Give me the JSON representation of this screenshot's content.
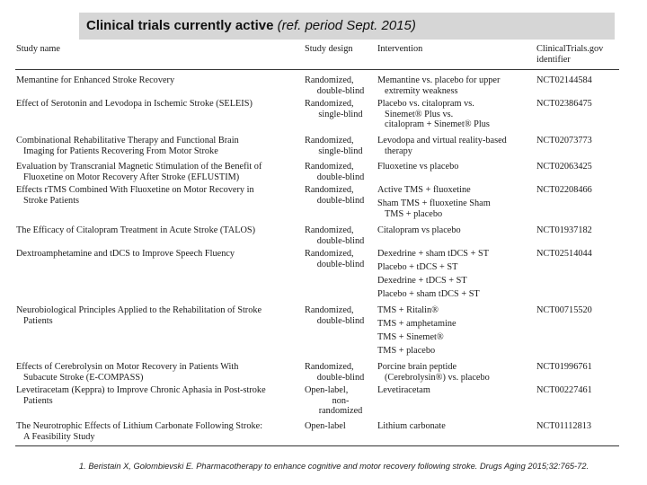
{
  "title": {
    "bold": "Clinical trials currently active",
    "italic": "(ref. period Sept. 2015)"
  },
  "table": {
    "headers": [
      "Study name",
      "Study design",
      "Intervention",
      [
        "ClinicalTrials.gov",
        "identifier"
      ]
    ],
    "rows": [
      {
        "name": [
          "Memantine for Enhanced Stroke Recovery"
        ],
        "design": [
          "Randomized,",
          "double-blind"
        ],
        "intervention": [
          [
            "Memantine vs. placebo for upper",
            "extremity weakness"
          ]
        ],
        "id": "NCT02144584"
      },
      {
        "name": [
          "Effect of Serotonin and Levodopa in Ischemic Stroke (SELEIS)"
        ],
        "design": [
          "Randomized,",
          "single-blind"
        ],
        "intervention": [
          [
            "Placebo vs. citalopram vs.",
            "Sinemet® Plus vs.",
            "citalopram + Sinemet® Plus"
          ]
        ],
        "id": "NCT02386475"
      },
      {
        "name": [
          "Combinational Rehabilitative Therapy and Functional Brain",
          "Imaging for Patients Recovering From Motor Stroke"
        ],
        "design": [
          "Randomized,",
          "single-blind"
        ],
        "intervention": [
          [
            "Levodopa and virtual reality-based",
            "therapy"
          ]
        ],
        "id": "NCT02073773"
      },
      {
        "name": [
          "Evaluation by Transcranial Magnetic Stimulation of the Benefit of",
          "Fluoxetine on Motor Recovery After Stroke (EFLUSTIM)"
        ],
        "design": [
          "Randomized,",
          "double-blind"
        ],
        "intervention": [
          [
            "Fluoxetine vs placebo"
          ]
        ],
        "id": "NCT02063425"
      },
      {
        "name": [
          "Effects rTMS Combined With Fluoxetine on Motor Recovery in",
          "Stroke Patients"
        ],
        "design": [
          "Randomized,",
          "double-blind"
        ],
        "intervention": [
          [
            "Active TMS + fluoxetine"
          ],
          [
            "Sham TMS + fluoxetine Sham",
            "TMS + placebo"
          ]
        ],
        "id": "NCT02208466"
      },
      {
        "name": [
          "The Efficacy of Citalopram Treatment in Acute Stroke (TALOS)"
        ],
        "design": [
          "Randomized,",
          "double-blind"
        ],
        "intervention": [
          [
            "Citalopram vs placebo"
          ]
        ],
        "id": "NCT01937182"
      },
      {
        "name": [
          "Dextroamphetamine and tDCS to Improve Speech Fluency"
        ],
        "design": [
          "Randomized,",
          "double-blind"
        ],
        "intervention": [
          [
            "Dexedrine + sham tDCS + ST"
          ],
          [
            "Placebo + tDCS + ST"
          ],
          [
            "Dexedrine + tDCS + ST"
          ],
          [
            "Placebo + sham tDCS + ST"
          ]
        ],
        "id": "NCT02514044"
      },
      {
        "name": [
          "Neurobiological Principles Applied to the Rehabilitation of Stroke",
          "Patients"
        ],
        "design": [
          "Randomized,",
          "double-blind"
        ],
        "intervention": [
          [
            "TMS + Ritalin®"
          ],
          [
            "TMS + amphetamine"
          ],
          [
            "TMS + Sinemet®"
          ],
          [
            "TMS + placebo"
          ]
        ],
        "id": "NCT00715520"
      },
      {
        "name": [
          "Effects of Cerebrolysin on Motor Recovery in Patients With",
          "Subacute Stroke (E-COMPASS)"
        ],
        "design": [
          "Randomized,",
          "double-blind"
        ],
        "intervention": [
          [
            "Porcine brain peptide",
            "(Cerebrolysin®) vs. placebo"
          ]
        ],
        "id": "NCT01996761"
      },
      {
        "name": [
          "Levetiracetam (Keppra) to Improve Chronic Aphasia in Post-stroke",
          "Patients"
        ],
        "design": [
          "Open-label,",
          "non-",
          "randomized"
        ],
        "intervention": [
          [
            "Levetiracetam"
          ]
        ],
        "id": "NCT00227461"
      },
      {
        "name": [
          "The Neurotrophic Effects of Lithium Carbonate Following Stroke:",
          "A Feasibility Study"
        ],
        "design": [
          "Open-label"
        ],
        "intervention": [
          [
            "Lithium carbonate"
          ]
        ],
        "id": "NCT01112813"
      }
    ]
  },
  "footnote": "1. Beristain X, Golombievski E. Pharmacotherapy to enhance cognitive and motor recovery following stroke. Drugs Aging 2015;32:765-72."
}
